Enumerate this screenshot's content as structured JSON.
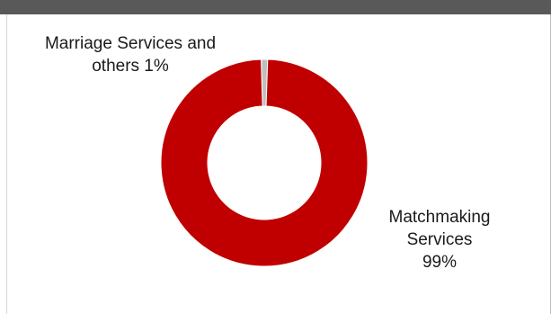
{
  "chart_data": {
    "type": "pie",
    "donut": true,
    "slices": [
      {
        "label_lines": [
          "Marriage Services and",
          "others 1%"
        ],
        "category": "Marriage Services and others",
        "value": 1,
        "color": "#bfbfbf"
      },
      {
        "label_lines": [
          "Matchmaking",
          "Services",
          "99%"
        ],
        "category": "Matchmaking Services",
        "value": 99,
        "color": "#c00000"
      }
    ]
  }
}
